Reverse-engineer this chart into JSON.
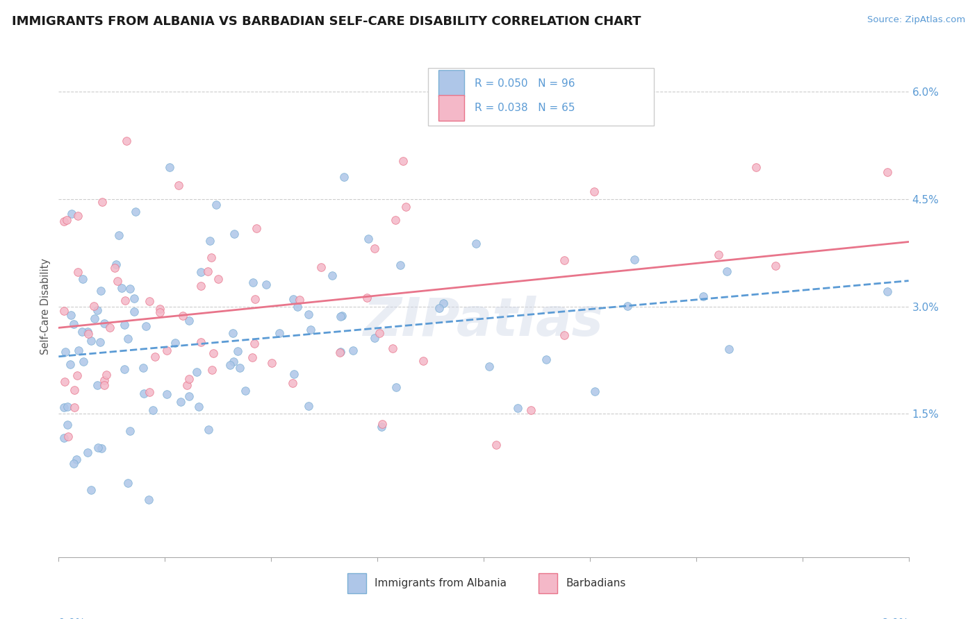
{
  "title": "IMMIGRANTS FROM ALBANIA VS BARBADIAN SELF-CARE DISABILITY CORRELATION CHART",
  "source": "Source: ZipAtlas.com",
  "ylabel": "Self-Care Disability",
  "xlim": [
    0.0,
    0.08
  ],
  "ylim": [
    -0.005,
    0.065
  ],
  "ytick_vals": [
    0.0,
    0.015,
    0.03,
    0.045,
    0.06
  ],
  "ytick_labels": [
    "",
    "1.5%",
    "3.0%",
    "4.5%",
    "6.0%"
  ],
  "series": [
    {
      "label": "Immigrants from Albania",
      "R": 0.05,
      "N": 96,
      "color": "#aec6e8",
      "edge_color": "#7bafd4",
      "trend_color": "#5b9bd5",
      "trend_style": "--"
    },
    {
      "label": "Barbadians",
      "R": 0.038,
      "N": 65,
      "color": "#f4b8c8",
      "edge_color": "#e8748a",
      "trend_color": "#e8748a",
      "trend_style": "-"
    }
  ],
  "watermark": "ZIPatlas",
  "background_color": "#ffffff",
  "grid_color": "#cccccc",
  "legend_box_colors": [
    "#aec6e8",
    "#f4b8c8"
  ],
  "legend_box_edge_colors": [
    "#7bafd4",
    "#e8748a"
  ],
  "legend_text_color": "#5b9bd5",
  "axis_label_color": "#5b9bd5",
  "ylabel_color": "#555555"
}
